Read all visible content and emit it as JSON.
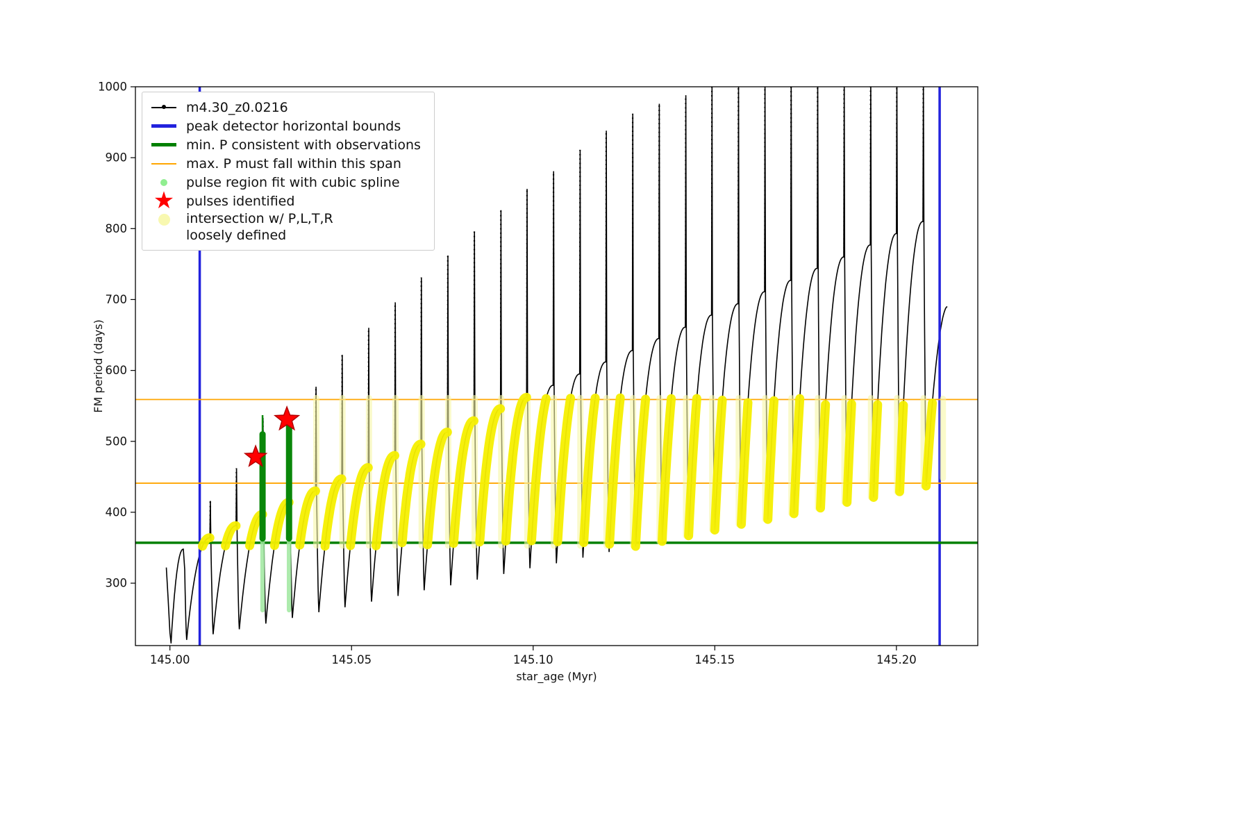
{
  "figure": {
    "title": "",
    "xlabel": "star_age (Myr)",
    "ylabel": "FM period (days)",
    "x_tick_labels": [
      "145.00",
      "145.05",
      "145.10",
      "145.15",
      "145.20"
    ],
    "x_tick_values": [
      145.0,
      145.05,
      145.1,
      145.15,
      145.2
    ],
    "y_tick_labels": [
      "300",
      "400",
      "500",
      "600",
      "700",
      "800",
      "900",
      "1000"
    ],
    "y_tick_values": [
      300,
      400,
      500,
      600,
      700,
      800,
      900,
      1000
    ],
    "xlim": [
      144.9905,
      145.2224
    ],
    "ylim": [
      212,
      1000
    ],
    "grid": false,
    "legend_position": "upper left"
  },
  "legend": {
    "entries": [
      {
        "label": "m4.30_z0.0216",
        "swatch": "line-dot",
        "color": "#000000"
      },
      {
        "label": "peak detector horizontal bounds",
        "swatch": "thick-line",
        "color": "#2222dd"
      },
      {
        "label": "min. P consistent with observations",
        "swatch": "thick-line",
        "color": "#008000"
      },
      {
        "label": "max. P must fall within this span",
        "swatch": "line",
        "color": "#ffa500"
      },
      {
        "label": "pulse region fit with cubic spline",
        "swatch": "dot",
        "color": "#90ee90"
      },
      {
        "label": "pulses identified",
        "swatch": "star",
        "color": "#ff0000"
      },
      {
        "label": "intersection w/ P,L,T,R",
        "label2": "loosely defined",
        "swatch": "dot-large",
        "color": "#f8f8b0"
      }
    ]
  },
  "chart_data": {
    "type": "line",
    "series": [
      {
        "name": "m4.30_z0.0216",
        "color": "#000000",
        "marker": "point"
      }
    ],
    "pulse_fields": [
      "t_spike_Myr",
      "valley_days",
      "shoulder_days",
      "peak_days"
    ],
    "lead_in": [
      [
        144.999,
        322
      ],
      [
        144.9995,
        278
      ],
      [
        145.0,
        230
      ],
      [
        145.0003,
        216
      ]
    ],
    "pulses": [
      [
        145.0037,
        215,
        348,
        352
      ],
      [
        145.011,
        220,
        364,
        416
      ],
      [
        145.0182,
        228,
        381,
        462
      ],
      [
        145.0255,
        235,
        397,
        533
      ],
      [
        145.0328,
        243,
        414,
        537
      ],
      [
        145.0401,
        251,
        430,
        577
      ],
      [
        145.0473,
        259,
        447,
        622
      ],
      [
        145.0546,
        266,
        463,
        660
      ],
      [
        145.0619,
        274,
        480,
        696
      ],
      [
        145.0691,
        282,
        496,
        731
      ],
      [
        145.0764,
        290,
        513,
        762
      ],
      [
        145.0837,
        297,
        529,
        796
      ],
      [
        145.091,
        305,
        546,
        826
      ],
      [
        145.0982,
        313,
        562,
        856
      ],
      [
        145.1055,
        321,
        579,
        881
      ],
      [
        145.1128,
        328,
        595,
        911
      ],
      [
        145.12,
        336,
        612,
        938
      ],
      [
        145.1273,
        344,
        628,
        962
      ],
      [
        145.1346,
        352,
        645,
        976
      ],
      [
        145.1419,
        359,
        661,
        988
      ],
      [
        145.1491,
        367,
        678,
        1000
      ],
      [
        145.1564,
        375,
        694,
        1008
      ],
      [
        145.1637,
        383,
        711,
        1012
      ],
      [
        145.1709,
        390,
        727,
        1012
      ],
      [
        145.1782,
        398,
        744,
        1012
      ],
      [
        145.1855,
        406,
        760,
        1012
      ],
      [
        145.1928,
        414,
        777,
        1012
      ],
      [
        145.2,
        421,
        793,
        1012
      ],
      [
        145.2073,
        429,
        810,
        1012
      ]
    ],
    "final_partial": {
      "t_end": 145.214,
      "valley": 437,
      "end_value": 690
    },
    "peak_detector_bounds_x": [
      145.0082,
      145.2119
    ],
    "min_P_y": 357,
    "max_P_span_y": [
      441,
      559
    ],
    "intersection_band": {
      "y_min": 352,
      "y_max": 562,
      "x_min": 145.007
    },
    "extra_intersection_column": {
      "x": 145.2128,
      "y_lo": 448,
      "y_hi": 560
    },
    "spline_pulses": [
      {
        "t": 145.0255,
        "pale_span": [
          262,
          363
        ],
        "solid_span": [
          363,
          510
        ],
        "thin_top": 537
      },
      {
        "t": 145.0328,
        "pale_span": [
          262,
          363
        ],
        "solid_span": [
          363,
          524
        ]
      }
    ],
    "pulses_identified": [
      {
        "x": 145.0236,
        "y": 478,
        "r": 16
      },
      {
        "x": 145.0322,
        "y": 531,
        "r": 18
      }
    ],
    "colors": {
      "series": "#000000",
      "bounds": "#2222dd",
      "min_p": "#008000",
      "max_p": "#ffa500",
      "spline_solid": "#0a870a",
      "spline_faint": "#9fe89f",
      "pulse_star": "#ff0000",
      "pulse_star_edge": "#b30000",
      "intersection": "#f6ef00",
      "intersection_faint": "#f6f6a6"
    }
  }
}
